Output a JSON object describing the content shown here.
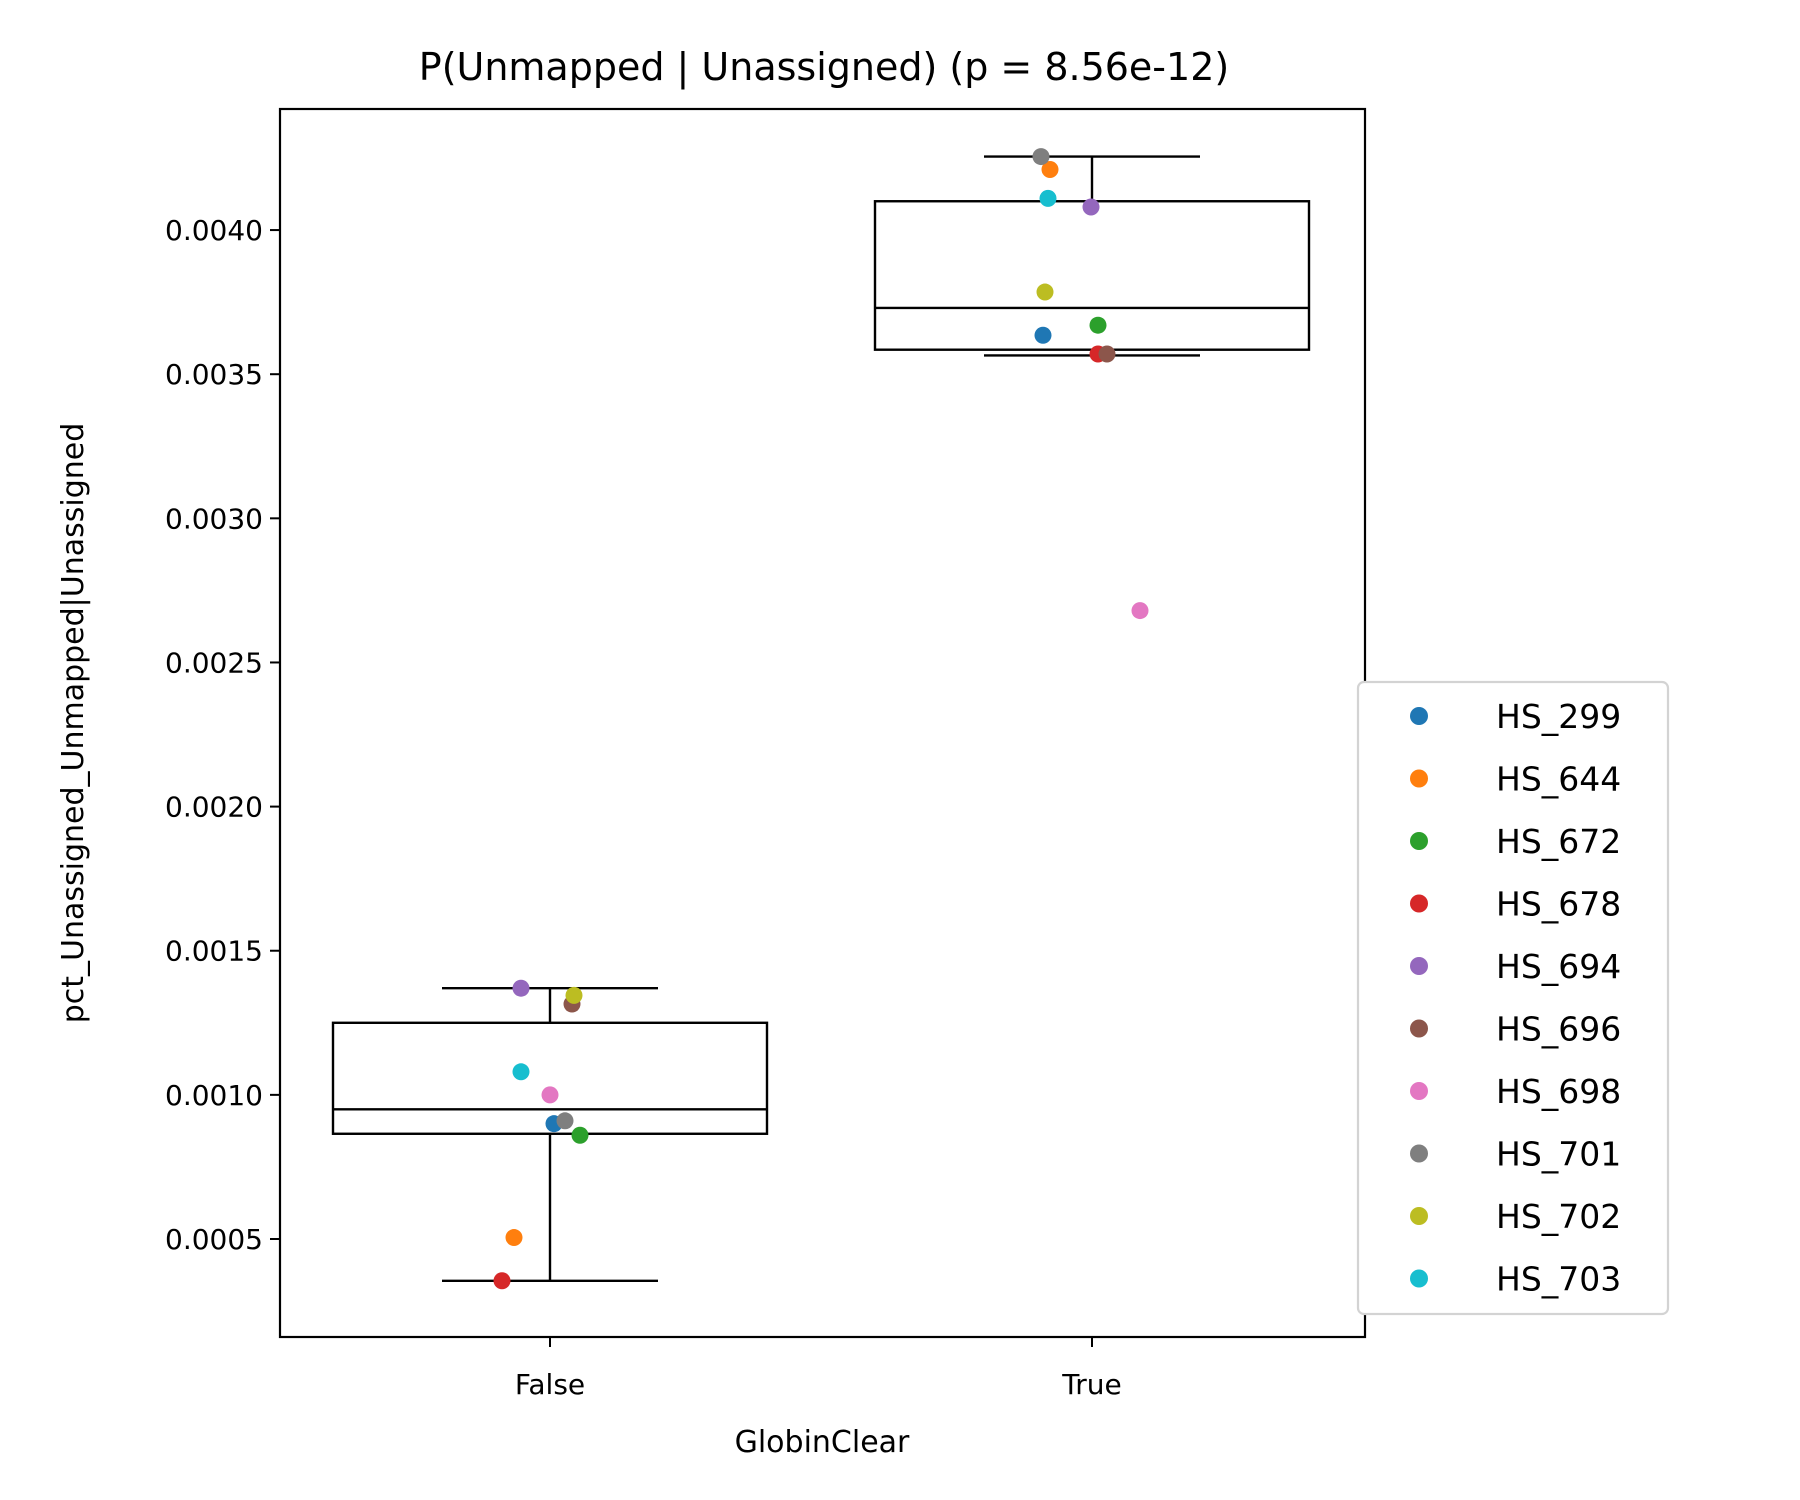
{
  "chart_data": {
    "type": "box",
    "title": "P(Unmapped | Unassigned) (p = 8.56e-12)",
    "xlabel": "GlobinClear",
    "ylabel": "pct_Unassigned_Unmapped|Unassigned",
    "categories": [
      "False",
      "True"
    ],
    "ylim": [
      0.00016,
      0.00442
    ],
    "yticks": [
      0.0005,
      0.001,
      0.0015,
      0.002,
      0.0025,
      0.003,
      0.0035,
      0.004
    ],
    "ytick_labels": [
      "0.0005",
      "0.0010",
      "0.0015",
      "0.0020",
      "0.0025",
      "0.0030",
      "0.0035",
      "0.0040"
    ],
    "grid": false,
    "legend_position": "right",
    "boxes": [
      {
        "category": "False",
        "whisker_low": 0.000355,
        "q1": 0.000865,
        "median": 0.00095,
        "q3": 0.00125,
        "whisker_high": 0.00137
      },
      {
        "category": "True",
        "whisker_low": 0.003565,
        "q1": 0.003585,
        "median": 0.00373,
        "q3": 0.0041,
        "whisker_high": 0.004255
      }
    ],
    "series": [
      {
        "name": "HS_299",
        "color": "#1f77b4",
        "values": [
          0.0009,
          0.003635
        ]
      },
      {
        "name": "HS_644",
        "color": "#ff7f0e",
        "values": [
          0.000505,
          0.00421
        ]
      },
      {
        "name": "HS_672",
        "color": "#2ca02c",
        "values": [
          0.00086,
          0.00367
        ]
      },
      {
        "name": "HS_678",
        "color": "#d62728",
        "values": [
          0.000355,
          0.00357
        ]
      },
      {
        "name": "HS_694",
        "color": "#9467bd",
        "values": [
          0.00137,
          0.00408
        ]
      },
      {
        "name": "HS_696",
        "color": "#8c564b",
        "values": [
          0.001315,
          0.00357
        ]
      },
      {
        "name": "HS_698",
        "color": "#e377c2",
        "values": [
          0.001,
          0.00268
        ]
      },
      {
        "name": "HS_701",
        "color": "#7f7f7f",
        "values": [
          0.00091,
          0.004255
        ]
      },
      {
        "name": "HS_702",
        "color": "#bcbd22",
        "values": [
          0.001345,
          0.003785
        ]
      },
      {
        "name": "HS_703",
        "color": "#17becf",
        "values": [
          0.00108,
          0.00411
        ]
      }
    ]
  }
}
